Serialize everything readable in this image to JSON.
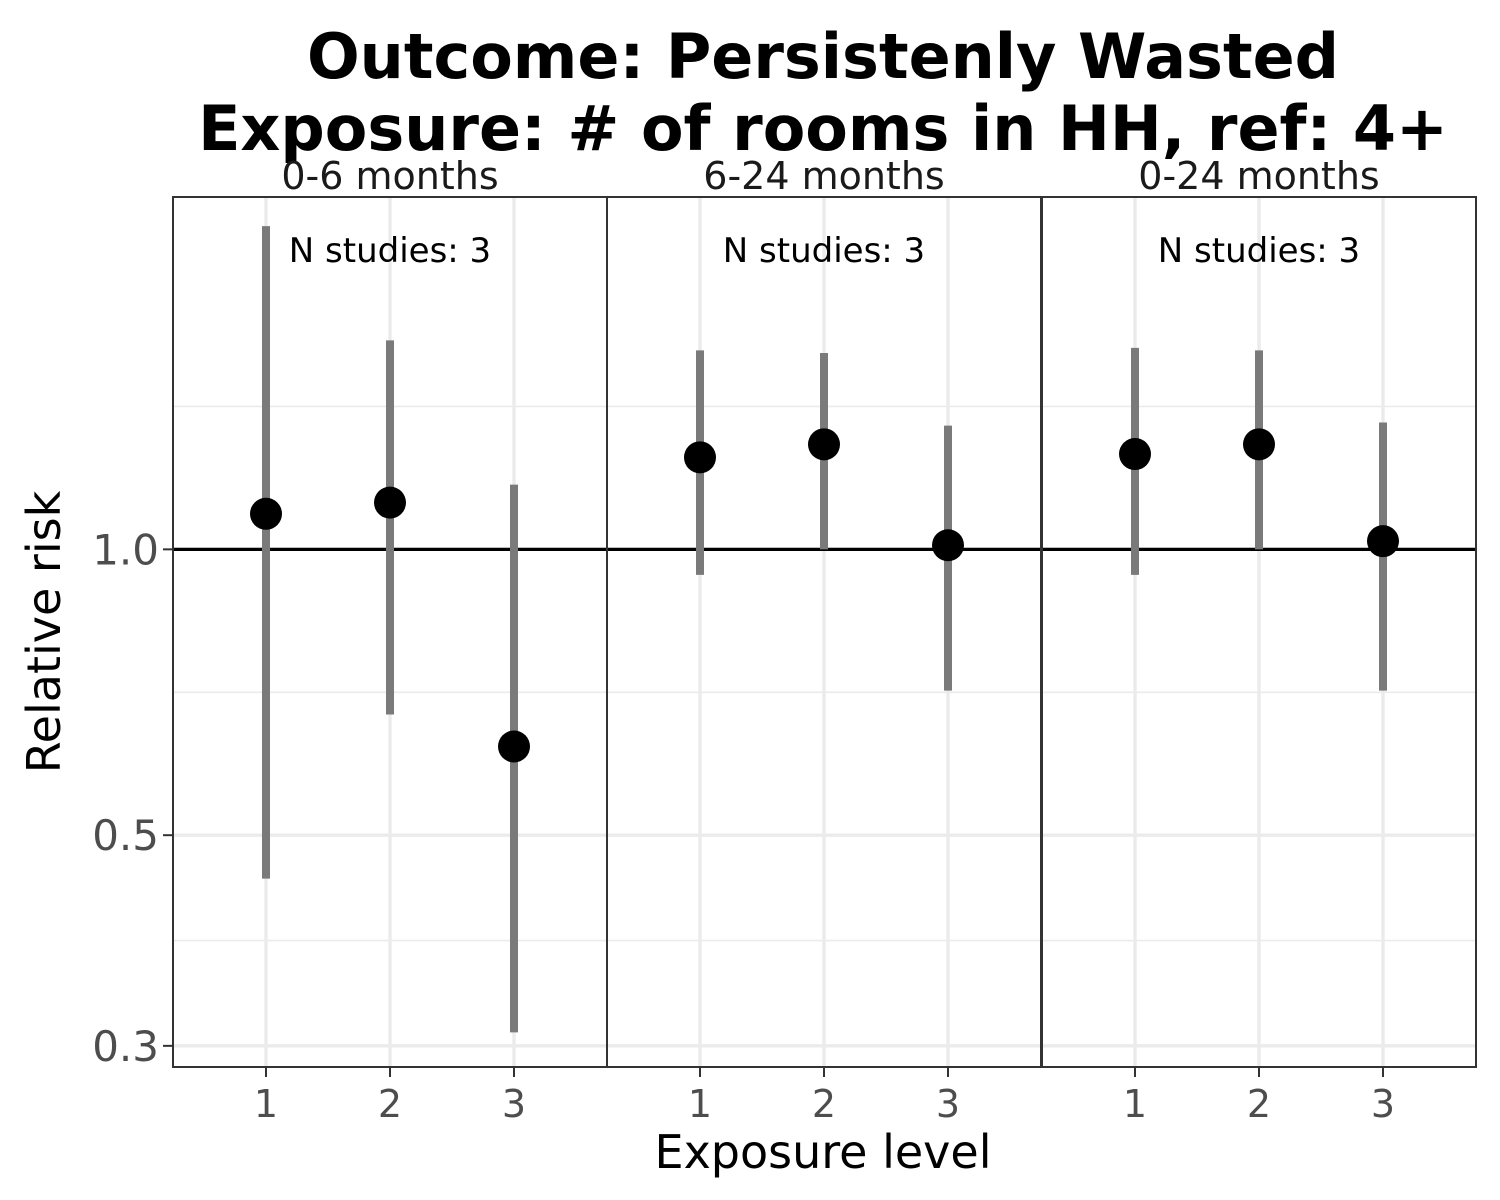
{
  "chart_data": {
    "type": "scatter",
    "title": [
      "Outcome: Persistenly Wasted",
      "Exposure: # of rooms in HH, ref: 4+"
    ],
    "xlabel": "Exposure level",
    "ylabel": "Relative risk",
    "y_scale": "log",
    "ylim": [
      0.285,
      2.35
    ],
    "y_ticks": [
      0.3,
      0.5,
      1.0
    ],
    "y_tick_labels": [
      "0.3",
      "0.5",
      "1.0"
    ],
    "reference_line": 1.0,
    "x_categories": [
      "1",
      "2",
      "3"
    ],
    "grid": true,
    "point_color": "#000000",
    "interval_color": "#7a7a7a",
    "panels": [
      {
        "label": "0-6 months",
        "annotation": "N studies: 3",
        "points": [
          {
            "x": "1",
            "y": 1.09,
            "lower": 0.45,
            "upper": 2.19
          },
          {
            "x": "2",
            "y": 1.12,
            "lower": 0.67,
            "upper": 1.66
          },
          {
            "x": "3",
            "y": 0.62,
            "lower": 0.31,
            "upper": 1.17
          }
        ]
      },
      {
        "label": "6-24 months",
        "annotation": "N studies: 3",
        "points": [
          {
            "x": "1",
            "y": 1.25,
            "lower": 0.94,
            "upper": 1.62
          },
          {
            "x": "2",
            "y": 1.29,
            "lower": 1.0,
            "upper": 1.61
          },
          {
            "x": "3",
            "y": 1.01,
            "lower": 0.71,
            "upper": 1.35
          }
        ]
      },
      {
        "label": "0-24 months",
        "annotation": "N studies: 3",
        "points": [
          {
            "x": "1",
            "y": 1.26,
            "lower": 0.94,
            "upper": 1.63
          },
          {
            "x": "2",
            "y": 1.29,
            "lower": 1.0,
            "upper": 1.62
          },
          {
            "x": "3",
            "y": 1.02,
            "lower": 0.71,
            "upper": 1.36
          }
        ]
      }
    ]
  }
}
